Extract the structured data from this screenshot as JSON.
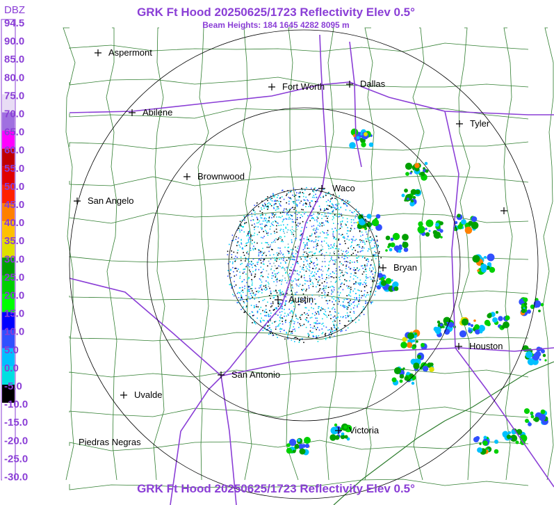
{
  "header": {
    "title": "GRK Ft Hood 20250625/1723 Reflectivity Elev 0.5°",
    "subtitle": "Beam Heights: 184 1645 4282 8095 m"
  },
  "legend": {
    "unit": "DBZ",
    "scale": [
      {
        "label": "94.5",
        "color": "#ffffff"
      },
      {
        "label": "90.0",
        "color": "#ffffff"
      },
      {
        "label": "85.0",
        "color": "#ffffff"
      },
      {
        "label": "80.0",
        "color": "#ffffff"
      },
      {
        "label": "75.0",
        "color": "#e8dcf5"
      },
      {
        "label": "70.0",
        "color": "#a070e0"
      },
      {
        "label": "65.0",
        "color": "#ff00ff"
      },
      {
        "label": "60.0",
        "color": "#c00000"
      },
      {
        "label": "55.0",
        "color": "#e00000"
      },
      {
        "label": "50.0",
        "color": "#ff2000"
      },
      {
        "label": "45.0",
        "color": "#ff8000"
      },
      {
        "label": "40.0",
        "color": "#ffc000"
      },
      {
        "label": "35.0",
        "color": "#e0e000"
      },
      {
        "label": "30.0",
        "color": "#00a000"
      },
      {
        "label": "25.0",
        "color": "#00d000"
      },
      {
        "label": "20.0",
        "color": "#00ff00"
      },
      {
        "label": "15.0",
        "color": "#0000ff"
      },
      {
        "label": "10.0",
        "color": "#3050ff"
      },
      {
        "label": "5.0",
        "color": "#00c0ff"
      },
      {
        "label": "0.0",
        "color": "#00e0e0"
      },
      {
        "label": "-5.0",
        "color": "#000000"
      },
      {
        "label": "-10.0",
        "color": "#ffffff"
      },
      {
        "label": "-15.0",
        "color": "#ffffff"
      },
      {
        "label": "-20.0",
        "color": "#ffffff"
      },
      {
        "label": "-25.0",
        "color": "#ffffff"
      },
      {
        "label": "-30.0",
        "color": "#ffffff"
      }
    ]
  },
  "cities": [
    "Aspermont",
    "Fort Worth",
    "Dallas",
    "Abilene",
    "Tyler",
    "Brownwood",
    "Waco",
    "San Angelo",
    "Bryan",
    "Austin",
    "Houston",
    "San Antonio",
    "Uvalde",
    "Piedras Negras",
    "Victoria"
  ],
  "footer": {
    "title": "GRK Ft Hood 20250625/1723 Reflectivity Elev 0.5°"
  }
}
